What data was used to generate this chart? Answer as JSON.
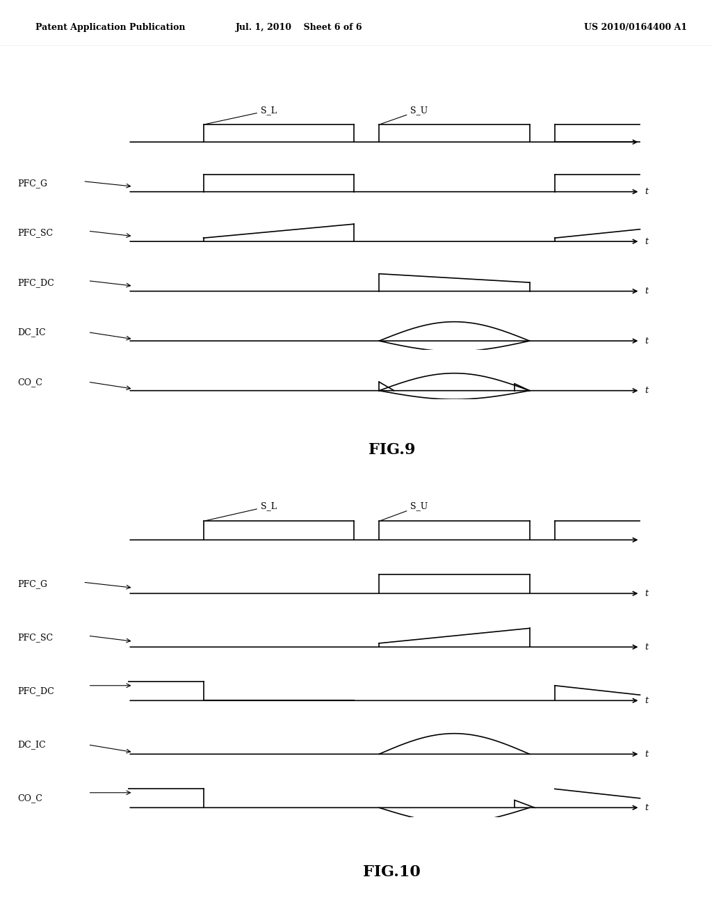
{
  "background_color": "#ffffff",
  "header_left": "Patent Application Publication",
  "header_mid": "Jul. 1, 2010    Sheet 6 of 6",
  "header_right": "US 2010/0164400 A1",
  "fig9_title": "FIG.9",
  "fig10_title": "FIG.10",
  "text_color": "#000000",
  "line_color": "#000000"
}
